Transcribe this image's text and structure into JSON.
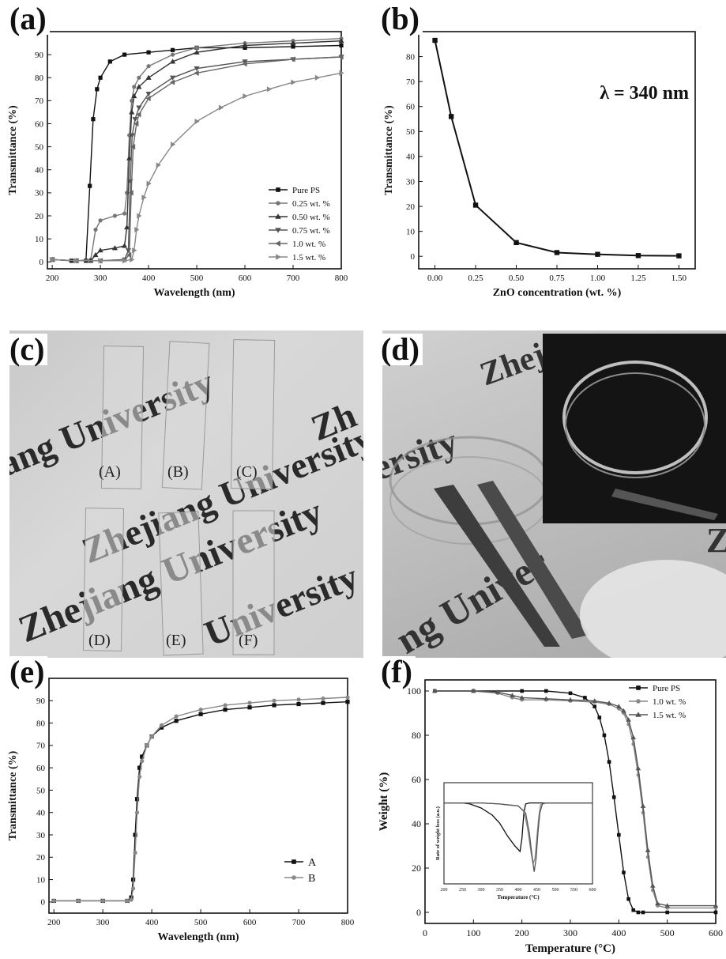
{
  "labels": {
    "a": "(a)",
    "b": "(b)",
    "c": "(c)",
    "d": "(d)",
    "e": "(e)",
    "f": "(f)"
  },
  "photo_c": {
    "watermark": [
      "Zhejiang University",
      "ang University",
      "Zhejiang University",
      "University",
      "Zh",
      "Zhe"
    ],
    "strip_labels": [
      "(A)",
      "(B)",
      "(C)",
      "(D)",
      "(E)",
      "(F)"
    ]
  },
  "photo_d": {
    "watermark": [
      "Zhej",
      "ersity",
      "ng Univer",
      "Z"
    ]
  },
  "chart_data": [
    {
      "id": "a",
      "type": "line",
      "xlabel": "Wavelength (nm)",
      "ylabel": "Transmittance (%)",
      "xlim": [
        190,
        800
      ],
      "ylim": [
        -3,
        100
      ],
      "xticks": [
        200,
        300,
        400,
        500,
        600,
        700,
        800
      ],
      "yticks": [
        0,
        10,
        20,
        30,
        40,
        50,
        60,
        70,
        80,
        90,
        100
      ],
      "legend_position": "right-middle",
      "series": [
        {
          "name": "Pure PS",
          "marker": "square",
          "color": "#111111",
          "x": [
            200,
            240,
            270,
            278,
            285,
            293,
            300,
            320,
            350,
            400,
            450,
            500,
            600,
            700,
            800
          ],
          "y": [
            1,
            0.5,
            0.5,
            33,
            62,
            75,
            80,
            87,
            90,
            91,
            92,
            93,
            93,
            93.5,
            94
          ]
        },
        {
          "name": "0.25 wt. %",
          "marker": "circle",
          "color": "#777777",
          "x": [
            200,
            250,
            280,
            290,
            300,
            330,
            350,
            355,
            360,
            365,
            370,
            380,
            400,
            450,
            500,
            600,
            700,
            800
          ],
          "y": [
            1,
            0.5,
            1,
            14,
            18,
            20,
            21,
            30,
            55,
            70,
            76,
            80,
            85,
            90,
            93,
            95,
            96,
            97
          ]
        },
        {
          "name": "0.50 wt. %",
          "marker": "triangle",
          "color": "#333333",
          "x": [
            200,
            250,
            280,
            290,
            300,
            330,
            350,
            355,
            360,
            365,
            370,
            380,
            400,
            450,
            500,
            600,
            700,
            800
          ],
          "y": [
            1,
            0.5,
            0.5,
            3,
            5,
            6,
            7,
            15,
            45,
            65,
            72,
            76,
            80,
            87,
            91,
            94,
            95,
            96
          ]
        },
        {
          "name": "0.75 wt. %",
          "marker": "tri-down",
          "color": "#555555",
          "x": [
            200,
            250,
            300,
            350,
            358,
            362,
            366,
            372,
            380,
            400,
            450,
            500,
            600,
            700,
            800
          ],
          "y": [
            1,
            0.5,
            0.5,
            1,
            5,
            35,
            55,
            62,
            67,
            73,
            80,
            84,
            87,
            88,
            89
          ]
        },
        {
          "name": "1.0 wt. %",
          "marker": "tri-left",
          "color": "#666666",
          "x": [
            200,
            250,
            300,
            350,
            360,
            364,
            368,
            375,
            380,
            400,
            450,
            500,
            600,
            700,
            800
          ],
          "y": [
            1,
            0.5,
            0.5,
            1,
            3,
            30,
            50,
            60,
            64,
            71,
            78,
            82,
            86,
            88,
            89
          ]
        },
        {
          "name": "1.5 wt. %",
          "marker": "tri-right",
          "color": "#888888",
          "x": [
            200,
            250,
            300,
            350,
            365,
            370,
            375,
            380,
            390,
            400,
            420,
            450,
            500,
            550,
            600,
            650,
            700,
            750,
            800
          ],
          "y": [
            1,
            0.5,
            0.5,
            0.5,
            1,
            5,
            14,
            20,
            28,
            34,
            42,
            51,
            61,
            67,
            72,
            75,
            78,
            80,
            82
          ]
        }
      ]
    },
    {
      "id": "b",
      "type": "line",
      "xlabel": "ZnO concentration (wt. %)",
      "ylabel": "Transmittance (%)",
      "annotation": "λ = 340 nm",
      "xlim": [
        -0.1,
        1.6
      ],
      "ylim": [
        -5,
        90
      ],
      "xticks": [
        0.0,
        0.25,
        0.5,
        0.75,
        1.0,
        1.25,
        1.5
      ],
      "xticklabels": [
        "0.00",
        "0.25",
        "0.50",
        "0.75",
        "1.00",
        "1.25",
        "1.50"
      ],
      "yticks": [
        0,
        10,
        20,
        30,
        40,
        50,
        60,
        70,
        80,
        90
      ],
      "series": [
        {
          "marker": "square",
          "color": "#111111",
          "x": [
            0,
            0.1,
            0.25,
            0.5,
            0.75,
            1.0,
            1.25,
            1.5
          ],
          "y": [
            86.5,
            56,
            20.5,
            5.5,
            1.5,
            0.8,
            0.3,
            0.2
          ]
        }
      ]
    },
    {
      "id": "e",
      "type": "line",
      "xlabel": "Wavelength (nm)",
      "ylabel": "Transmittance (%)",
      "xlim": [
        190,
        800
      ],
      "ylim": [
        -5,
        100
      ],
      "xticks": [
        200,
        300,
        400,
        500,
        600,
        700,
        800
      ],
      "yticks": [
        0,
        10,
        20,
        30,
        40,
        50,
        60,
        70,
        80,
        90,
        100
      ],
      "legend_position": "bottom-right",
      "series": [
        {
          "name": "A",
          "marker": "square",
          "color": "#111111",
          "x": [
            200,
            250,
            300,
            350,
            358,
            362,
            366,
            370,
            375,
            380,
            390,
            400,
            420,
            450,
            500,
            550,
            600,
            650,
            700,
            750,
            800
          ],
          "y": [
            0.5,
            0.5,
            0.5,
            0.5,
            2,
            10,
            30,
            46,
            60,
            65,
            70,
            74,
            78,
            81,
            84,
            86,
            87,
            88,
            88.5,
            89,
            89.5
          ]
        },
        {
          "name": "B",
          "marker": "circle",
          "color": "#888888",
          "x": [
            200,
            250,
            300,
            350,
            358,
            362,
            366,
            370,
            375,
            380,
            390,
            400,
            420,
            450,
            500,
            550,
            600,
            650,
            700,
            750,
            800
          ],
          "y": [
            0.5,
            0.5,
            0.5,
            0.5,
            1,
            6,
            22,
            40,
            56,
            63,
            70,
            74,
            79,
            83,
            86,
            88,
            89,
            90,
            90.5,
            91,
            91.5
          ]
        }
      ]
    },
    {
      "id": "f",
      "type": "line",
      "xlabel": "Temperature (°C)",
      "ylabel": "Weight (%)",
      "xlim": [
        0,
        600
      ],
      "ylim": [
        -5,
        105
      ],
      "xticks": [
        0,
        100,
        200,
        300,
        400,
        500,
        600
      ],
      "yticks": [
        0,
        20,
        40,
        60,
        80,
        100
      ],
      "legend_position": "top-right",
      "series": [
        {
          "name": "Pure PS",
          "marker": "square",
          "color": "#111111",
          "x": [
            20,
            100,
            200,
            250,
            300,
            330,
            350,
            360,
            370,
            380,
            390,
            400,
            410,
            420,
            430,
            440,
            450,
            500,
            600
          ],
          "y": [
            100,
            100,
            100,
            100,
            99,
            97,
            93,
            88,
            80,
            68,
            52,
            35,
            18,
            6,
            1,
            0,
            0,
            0,
            0
          ]
        },
        {
          "name": "1.0 wt. %",
          "marker": "circle",
          "color": "#888888",
          "x": [
            20,
            100,
            150,
            180,
            200,
            250,
            300,
            350,
            380,
            400,
            410,
            420,
            430,
            440,
            450,
            460,
            470,
            480,
            500,
            600
          ],
          "y": [
            100,
            100,
            99,
            97,
            96,
            96,
            95.5,
            95,
            94,
            92,
            90,
            85,
            76,
            62,
            45,
            25,
            10,
            3,
            2,
            2
          ]
        },
        {
          "name": "1.5 wt. %",
          "marker": "triangle",
          "color": "#555555",
          "x": [
            20,
            100,
            150,
            180,
            200,
            250,
            300,
            350,
            380,
            400,
            410,
            420,
            430,
            440,
            450,
            460,
            470,
            480,
            500,
            600
          ],
          "y": [
            100,
            100,
            99.5,
            98,
            97,
            96.5,
            96,
            95.5,
            94.5,
            93,
            91,
            87,
            79,
            65,
            48,
            28,
            12,
            4,
            3,
            3
          ]
        }
      ]
    },
    {
      "id": "f-inset",
      "type": "line",
      "xlabel": "Temperature (°C)",
      "ylabel": "Rate of weight loss (a.u.)",
      "xlim": [
        200,
        600
      ],
      "ylim": [
        0,
        1
      ],
      "xticks": [
        200,
        250,
        300,
        350,
        400,
        450,
        500,
        550,
        600
      ],
      "series": [
        {
          "color": "#111111",
          "x": [
            200,
            250,
            270,
            300,
            330,
            350,
            370,
            390,
            400,
            405,
            410,
            415,
            420,
            430,
            450,
            600
          ],
          "y": [
            0.8,
            0.8,
            0.79,
            0.75,
            0.68,
            0.6,
            0.48,
            0.38,
            0.34,
            0.32,
            0.45,
            0.7,
            0.79,
            0.8,
            0.8,
            0.8
          ]
        },
        {
          "color": "#888888",
          "x": [
            200,
            300,
            350,
            400,
            415,
            425,
            435,
            440,
            445,
            450,
            455,
            460,
            470,
            600
          ],
          "y": [
            0.8,
            0.8,
            0.79,
            0.77,
            0.72,
            0.55,
            0.3,
            0.2,
            0.25,
            0.45,
            0.65,
            0.78,
            0.8,
            0.8
          ]
        },
        {
          "color": "#555555",
          "x": [
            200,
            300,
            350,
            400,
            420,
            430,
            438,
            443,
            448,
            453,
            458,
            465,
            475,
            600
          ],
          "y": [
            0.8,
            0.8,
            0.79,
            0.77,
            0.7,
            0.5,
            0.25,
            0.12,
            0.25,
            0.5,
            0.7,
            0.79,
            0.8,
            0.8
          ]
        }
      ]
    }
  ]
}
